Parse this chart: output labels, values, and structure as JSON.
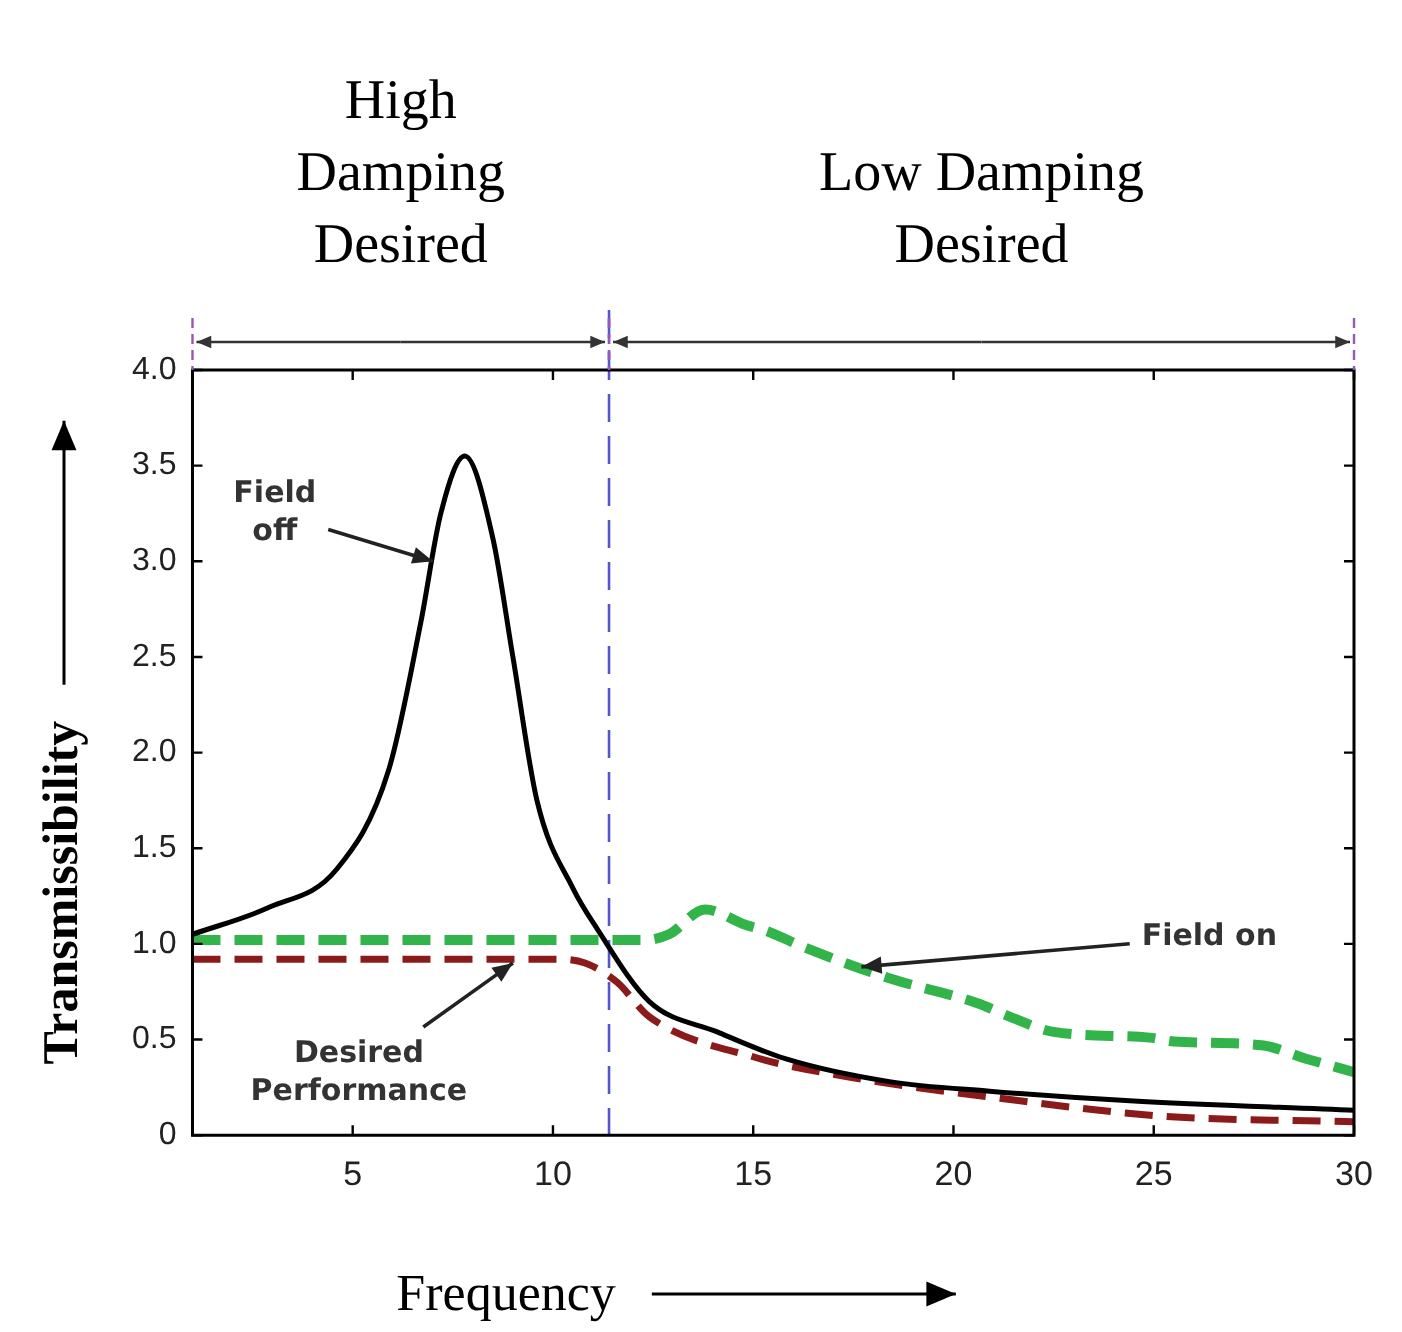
{
  "chart_data": {
    "type": "line",
    "xlabel": "Frequency",
    "ylabel": "Transmissibility",
    "xlim": [
      1,
      30
    ],
    "xticks": [
      5,
      10,
      15,
      20,
      25,
      30
    ],
    "ylim": [
      0,
      4
    ],
    "yticks": [
      {
        "value": 0,
        "label": "0"
      },
      {
        "value": 0.5,
        "label": "0.5"
      },
      {
        "value": 1,
        "label": "1.0"
      },
      {
        "value": 1.5,
        "label": "1.5"
      },
      {
        "value": 2,
        "label": "2.0"
      },
      {
        "value": 2.5,
        "label": "2.5"
      },
      {
        "value": 3,
        "label": "3.0"
      },
      {
        "value": 3.5,
        "label": "3.5"
      },
      {
        "value": 4,
        "label": "4.0"
      }
    ],
    "grid": false,
    "legend": false,
    "marker": "none",
    "series": [
      {
        "color": "#000000",
        "line_style": "solid",
        "x": [
          1,
          2.9,
          4.6,
          5.9,
          6.7,
          7.2,
          7.8,
          8.5,
          9,
          9.6,
          10.5,
          11.1,
          12.4,
          14.1,
          15.8,
          18.4,
          20.9,
          24.4,
          30
        ],
        "values": [
          1.05,
          1.19,
          1.39,
          1.91,
          2.68,
          3.25,
          3.55,
          3.12,
          2.5,
          1.75,
          1.29,
          1.08,
          0.7,
          0.54,
          0.4,
          0.28,
          0.23,
          0.18,
          0.13
        ]
      },
      {
        "color": "#33b44a",
        "line_style": "dashed",
        "x": [
          1,
          5,
          10,
          12.3,
          12.9,
          13.8,
          14.8,
          15.3,
          16.3,
          18.4,
          20.6,
          21.4,
          22.5,
          24.9,
          25.5,
          27.7,
          28.8,
          30
        ],
        "values": [
          1.02,
          1.02,
          1.02,
          1.02,
          1.05,
          1.18,
          1.1,
          1.07,
          0.98,
          0.82,
          0.69,
          0.62,
          0.54,
          0.51,
          0.49,
          0.47,
          0.4,
          0.33
        ]
      },
      {
        "color": "#8b1a1a",
        "line_style": "dashed",
        "x": [
          1,
          5,
          10,
          10.8,
          11.6,
          12.4,
          15,
          17.5,
          20.9,
          25.2,
          30
        ],
        "values": [
          0.92,
          0.92,
          0.92,
          0.9,
          0.8,
          0.62,
          0.41,
          0.3,
          0.2,
          0.1,
          0.07
        ]
      }
    ],
    "ref_lines": [
      {
        "axis": "x",
        "value": 11.4,
        "color": "#5555cc",
        "line_style": "dashed"
      }
    ],
    "annotations": [
      "High Damping Desired",
      "Low Damping Desired",
      {
        "text": "Field\noff",
        "x": 7,
        "y": 3
      },
      {
        "text": "Field on",
        "x": 17.7,
        "y": 0.88
      },
      {
        "text": "Desired\nPerformance",
        "x": 9,
        "y": 0.9
      }
    ]
  }
}
